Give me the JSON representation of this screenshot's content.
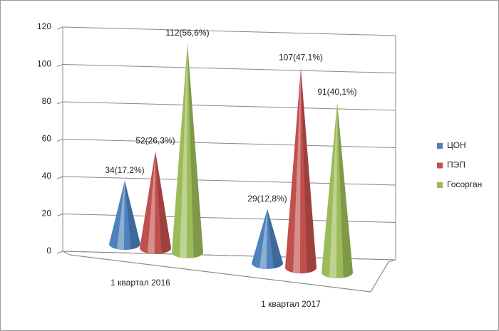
{
  "chart_data": {
    "type": "cone3d",
    "categories": [
      "1 квартал 2016",
      "1 квартал 2017"
    ],
    "series": [
      {
        "name": "ЦОН",
        "color": "#4f81bd",
        "values": [
          34,
          29
        ],
        "value_labels": [
          "34(17,2%)",
          "29(12,8%)"
        ]
      },
      {
        "name": "ПЭП",
        "color": "#c0504d",
        "values": [
          52,
          107
        ],
        "value_labels": [
          "52(26,3%)",
          "107(47,1%)"
        ]
      },
      {
        "name": "Госорган",
        "color": "#9bbb59",
        "values": [
          112,
          91
        ],
        "value_labels": [
          "112(56,6%)",
          "91(40,1%)"
        ]
      }
    ],
    "ylim": [
      0,
      120
    ],
    "yticks": [
      0,
      20,
      40,
      60,
      80,
      100,
      120
    ],
    "grid": true,
    "legend": "right"
  }
}
